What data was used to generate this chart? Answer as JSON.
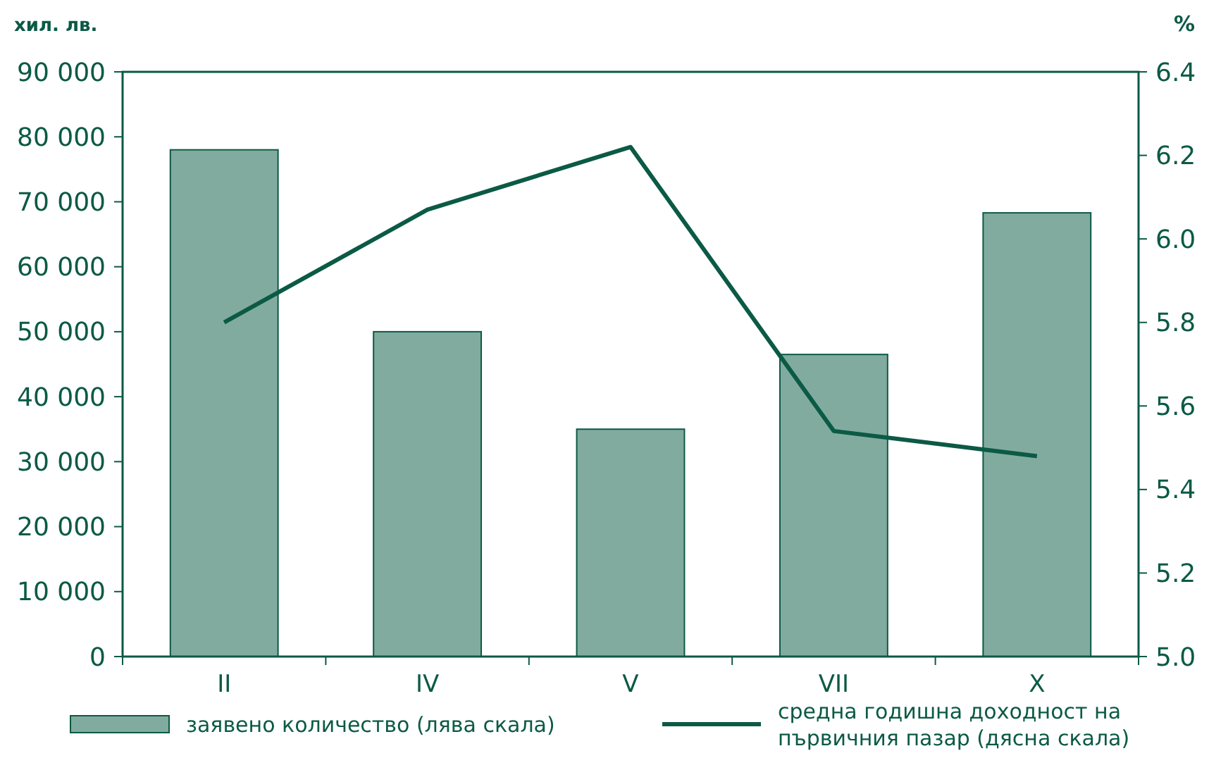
{
  "chart_data": {
    "type": "bar",
    "ylabel": "хил. лв.",
    "y2label": "%",
    "categories": [
      "II",
      "IV",
      "V",
      "VII",
      "X"
    ],
    "series": [
      {
        "name": "заявено количество (лява скала)",
        "color": "#82ab9f",
        "values": [
          78000,
          50000,
          35000,
          46500,
          68300
        ]
      },
      {
        "name": "средна годишна доходност на първичния пазар (дясна скала)",
        "type": "line",
        "axis": "y2",
        "color": "#0b5a45",
        "values": [
          5.8,
          6.07,
          6.22,
          5.54,
          5.48
        ]
      }
    ],
    "ylim": [
      0,
      90000
    ],
    "yticks": [
      {
        "value": 0,
        "label": "0"
      },
      {
        "value": 10000,
        "label": "10 000"
      },
      {
        "value": 20000,
        "label": "20 000"
      },
      {
        "value": 30000,
        "label": "30 000"
      },
      {
        "value": 40000,
        "label": "40 000"
      },
      {
        "value": 50000,
        "label": "50 000"
      },
      {
        "value": 60000,
        "label": "60 000"
      },
      {
        "value": 70000,
        "label": "70 000"
      },
      {
        "value": 80000,
        "label": "80 000"
      },
      {
        "value": 90000,
        "label": "90 000"
      }
    ],
    "y2lim": [
      5.0,
      6.4
    ],
    "y2ticks": [
      {
        "value": 5.0,
        "label": "5.0"
      },
      {
        "value": 5.2,
        "label": "5.2"
      },
      {
        "value": 5.4,
        "label": "5.4"
      },
      {
        "value": 5.6,
        "label": "5.6"
      },
      {
        "value": 5.8,
        "label": "5.8"
      },
      {
        "value": 6.0,
        "label": "6.0"
      },
      {
        "value": 6.2,
        "label": "6.2"
      },
      {
        "value": 6.4,
        "label": "6.4"
      }
    ],
    "grid": false,
    "legend": "bottom"
  }
}
